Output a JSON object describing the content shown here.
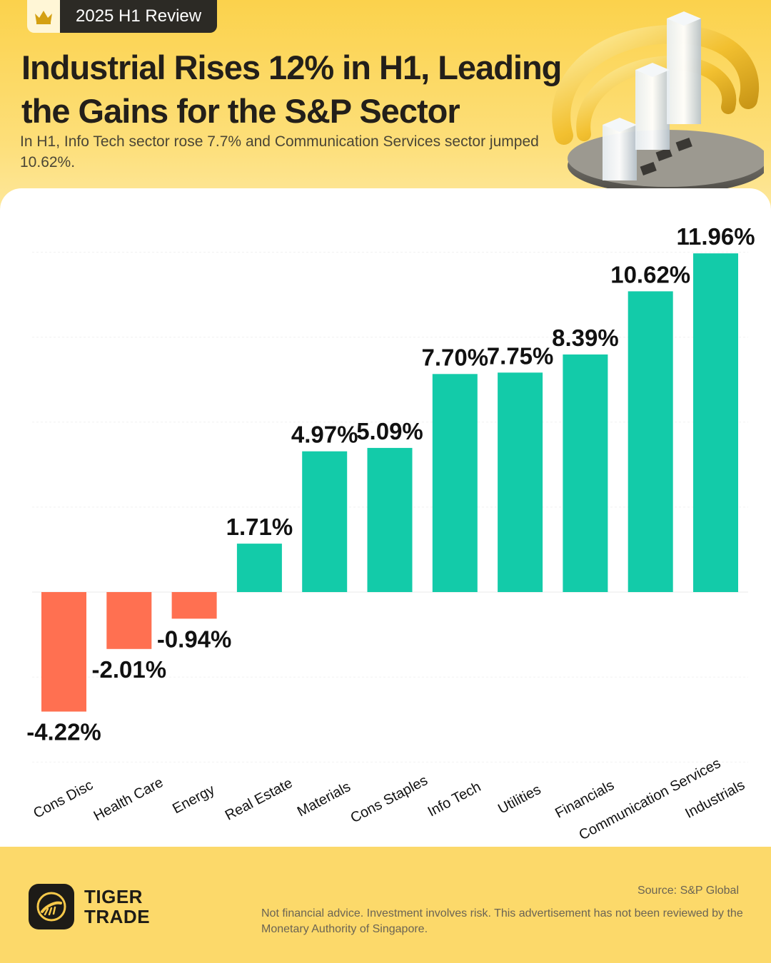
{
  "badge": {
    "label": "2025 H1 Review",
    "icon": "crown-icon"
  },
  "header": {
    "title": "Industrial Rises 12% in H1, Leading the Gains for the S&P Sector",
    "subtitle": "In H1, Info Tech sector rose 7.7% and Communication Services sector jumped 10.62%."
  },
  "colors": {
    "positive": "#13cba9",
    "negative": "#ff7051",
    "background": "#fcd96a",
    "text": "#231f1a"
  },
  "chart_data": {
    "type": "bar",
    "categories": [
      "Cons Disc",
      "Health Care",
      "Energy",
      "Real Estate",
      "Materials",
      "Cons Staples",
      "Info Tech",
      "Utilities",
      "Financials",
      "Communication Services",
      "Industrials"
    ],
    "values": [
      -4.22,
      -2.01,
      -0.94,
      1.71,
      4.97,
      5.09,
      7.7,
      7.75,
      8.39,
      10.62,
      11.96
    ],
    "value_labels": [
      "-4.22%",
      "-2.01%",
      "-0.94%",
      "1.71%",
      "4.97%",
      "5.09%",
      "7.70%",
      "7.75%",
      "8.39%",
      "10.62%",
      "11.96%"
    ],
    "ylim": [
      -6,
      12
    ],
    "grid": true,
    "xlabel": "",
    "ylabel": ""
  },
  "footer": {
    "brand": "TIGER TRADE",
    "source": "Source: S&P Global",
    "disclaimer": "Not financial advice. Investment involves risk. This advertisement has not been reviewed by the Monetary Authority of Singapore."
  }
}
